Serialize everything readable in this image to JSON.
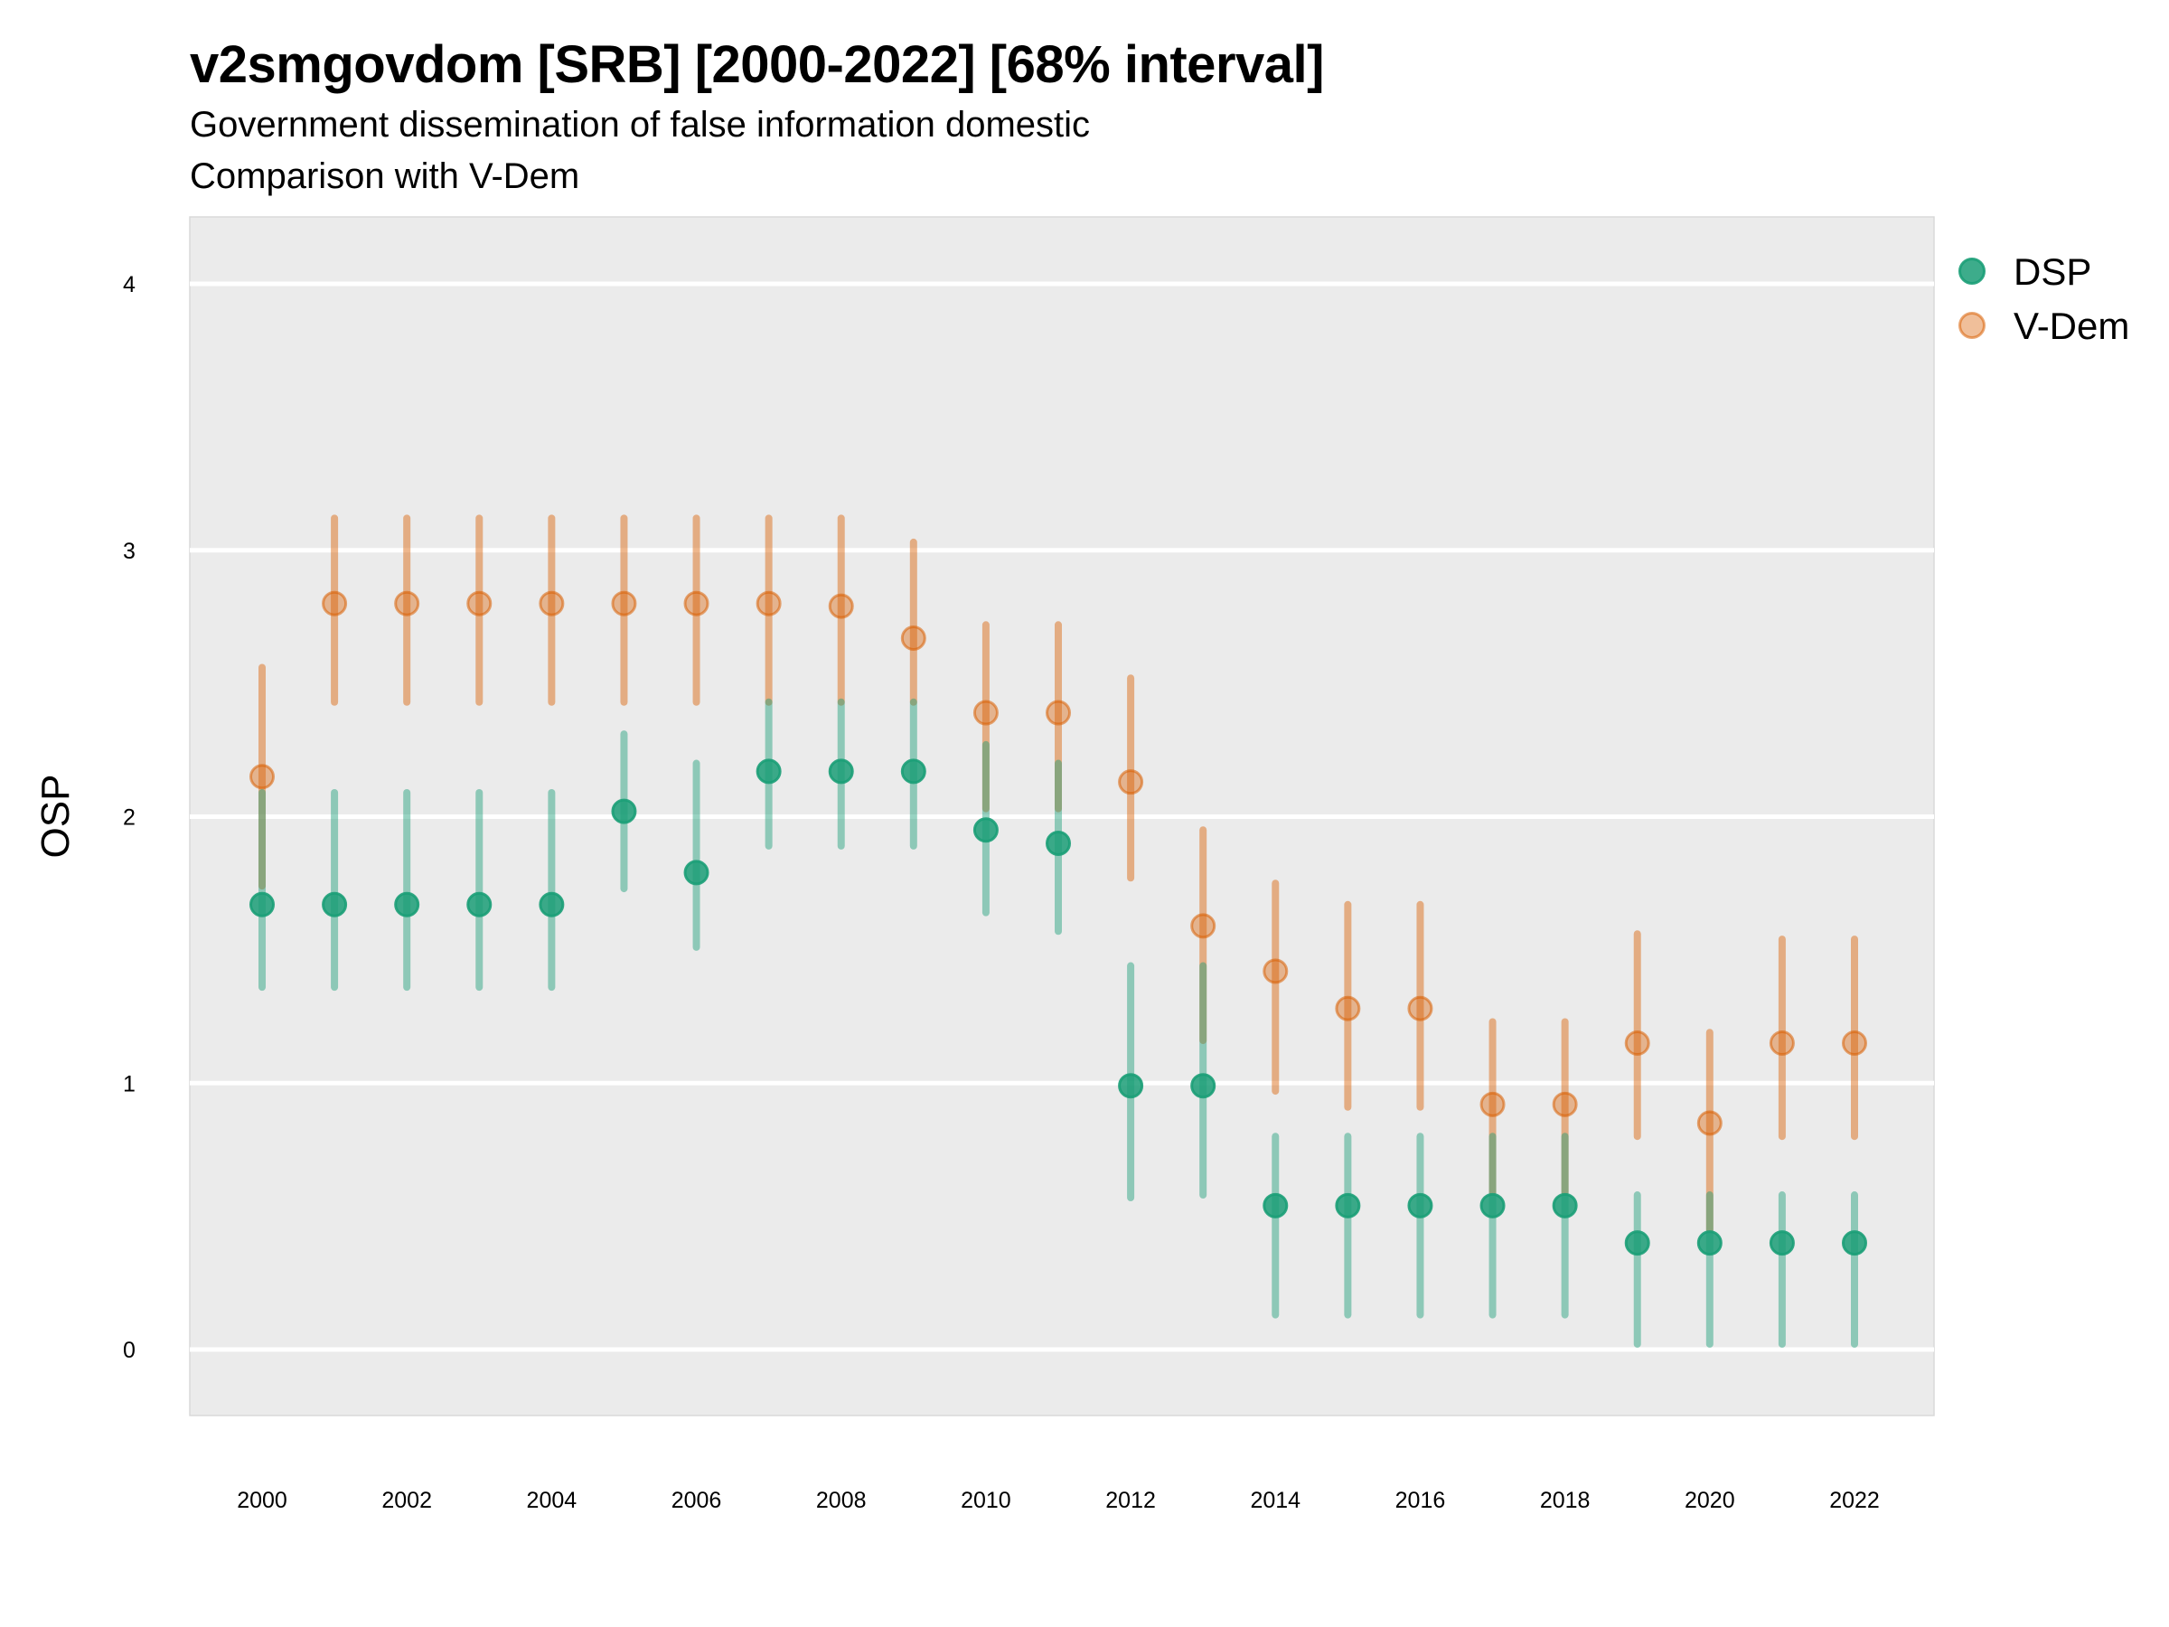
{
  "header": {
    "title": "v2smgovdom [SRB] [2000-2022] [68% interval]",
    "subtitle_line1": "Government dissemination of false information domestic",
    "subtitle_line2": "Comparison with V-Dem"
  },
  "chart_data": {
    "type": "scatter",
    "subtype": "point-range",
    "title": "v2smgovdom [SRB] [2000-2022] [68% interval]",
    "subtitle": [
      "Government dissemination of false information domestic",
      "Comparison with V-Dem"
    ],
    "xlabel": "",
    "ylabel": "OSP",
    "x": [
      2000,
      2001,
      2002,
      2003,
      2004,
      2005,
      2006,
      2007,
      2008,
      2009,
      2010,
      2011,
      2012,
      2013,
      2014,
      2015,
      2016,
      2017,
      2018,
      2019,
      2020,
      2021,
      2022
    ],
    "xlim": [
      1999.0,
      2023.0
    ],
    "ylim": [
      -0.25,
      4.25
    ],
    "x_ticks": [
      "2000",
      "2002",
      "2004",
      "2006",
      "2008",
      "2010",
      "2012",
      "2014",
      "2016",
      "2018",
      "2020",
      "2022"
    ],
    "x_tick_values": [
      2000,
      2002,
      2004,
      2006,
      2008,
      2010,
      2012,
      2014,
      2016,
      2018,
      2020,
      2022
    ],
    "y_ticks": [
      "0",
      "1",
      "2",
      "3",
      "4"
    ],
    "y_tick_values": [
      0,
      1,
      2,
      3,
      4
    ],
    "grid": true,
    "legend_position": "top-right",
    "series": [
      {
        "name": "DSP",
        "color": "#1b9e77",
        "values": [
          1.67,
          1.67,
          1.67,
          1.67,
          1.67,
          2.02,
          1.79,
          2.17,
          2.17,
          2.17,
          1.95,
          1.9,
          0.99,
          0.99,
          0.54,
          0.54,
          0.54,
          0.54,
          0.54,
          0.4,
          0.4,
          0.4,
          0.4
        ],
        "lower": [
          1.36,
          1.36,
          1.36,
          1.36,
          1.36,
          1.73,
          1.51,
          1.89,
          1.89,
          1.89,
          1.64,
          1.57,
          0.57,
          0.58,
          0.13,
          0.13,
          0.13,
          0.13,
          0.13,
          0.02,
          0.02,
          0.02,
          0.02
        ],
        "upper": [
          2.09,
          2.09,
          2.09,
          2.09,
          2.09,
          2.31,
          2.2,
          2.43,
          2.43,
          2.43,
          2.27,
          2.2,
          1.44,
          1.44,
          0.8,
          0.8,
          0.8,
          0.8,
          0.8,
          0.58,
          0.58,
          0.58,
          0.58
        ]
      },
      {
        "name": "V-Dem",
        "color": "#d95f02",
        "values": [
          2.15,
          2.8,
          2.8,
          2.8,
          2.8,
          2.8,
          2.8,
          2.8,
          2.79,
          2.67,
          2.39,
          2.39,
          2.13,
          1.59,
          1.42,
          1.28,
          1.28,
          0.92,
          0.92,
          1.15,
          0.85,
          1.15,
          1.15
        ],
        "lower": [
          1.74,
          2.43,
          2.43,
          2.43,
          2.43,
          2.43,
          2.43,
          2.43,
          2.43,
          2.43,
          2.03,
          2.03,
          1.77,
          1.16,
          0.97,
          0.91,
          0.91,
          0.59,
          0.59,
          0.8,
          0.45,
          0.8,
          0.8
        ],
        "upper": [
          2.56,
          3.12,
          3.12,
          3.12,
          3.12,
          3.12,
          3.12,
          3.12,
          3.12,
          3.03,
          2.72,
          2.72,
          2.52,
          1.95,
          1.75,
          1.67,
          1.67,
          1.23,
          1.23,
          1.56,
          1.19,
          1.54,
          1.54
        ]
      }
    ]
  }
}
